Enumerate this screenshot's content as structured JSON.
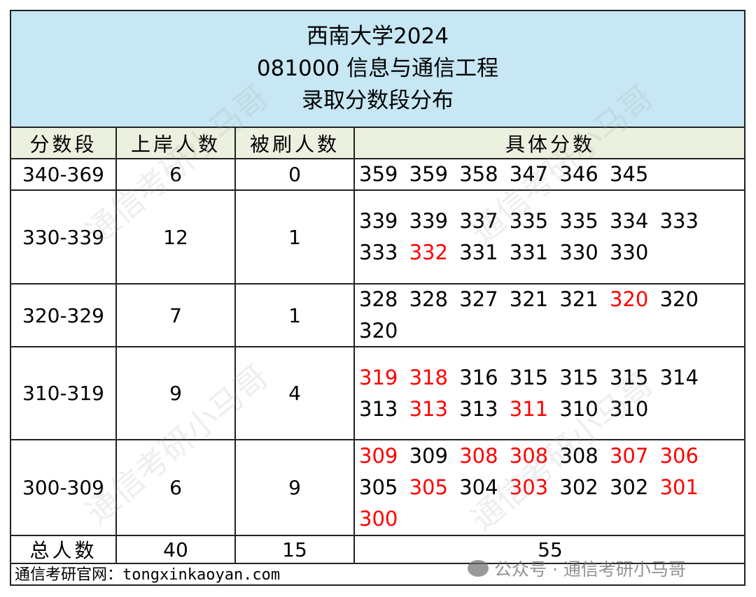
{
  "title": {
    "line1": "西南大学2024",
    "line2": "081000 信息与通信工程",
    "line3": "录取分数段分布"
  },
  "headers": [
    "分数段",
    "上岸人数",
    "被刷人数",
    "具体分数"
  ],
  "rows": [
    {
      "range": "340-369",
      "admitted": "6",
      "rejected": "0",
      "scores": [
        {
          "v": "359",
          "red": false
        },
        {
          "v": "359",
          "red": false
        },
        {
          "v": "358",
          "red": false
        },
        {
          "v": "347",
          "red": false
        },
        {
          "v": "346",
          "red": false
        },
        {
          "v": "345",
          "red": false
        }
      ]
    },
    {
      "range": "330-339",
      "admitted": "12",
      "rejected": "1",
      "scores": [
        {
          "v": "339",
          "red": false
        },
        {
          "v": "339",
          "red": false
        },
        {
          "v": "337",
          "red": false
        },
        {
          "v": "335",
          "red": false
        },
        {
          "v": "335",
          "red": false
        },
        {
          "v": "334",
          "red": false
        },
        {
          "v": "333",
          "red": false
        },
        {
          "v": "333",
          "red": false
        },
        {
          "v": "332",
          "red": true
        },
        {
          "v": "331",
          "red": false
        },
        {
          "v": "331",
          "red": false
        },
        {
          "v": "330",
          "red": false
        },
        {
          "v": "330",
          "red": false
        }
      ]
    },
    {
      "range": "320-329",
      "admitted": "7",
      "rejected": "1",
      "scores": [
        {
          "v": "328",
          "red": false
        },
        {
          "v": "328",
          "red": false
        },
        {
          "v": "327",
          "red": false
        },
        {
          "v": "321",
          "red": false
        },
        {
          "v": "321",
          "red": false
        },
        {
          "v": "320",
          "red": true
        },
        {
          "v": "320",
          "red": false
        },
        {
          "v": "320",
          "red": false
        }
      ]
    },
    {
      "range": "310-319",
      "admitted": "9",
      "rejected": "4",
      "scores": [
        {
          "v": "319",
          "red": true
        },
        {
          "v": "318",
          "red": true
        },
        {
          "v": "316",
          "red": false
        },
        {
          "v": "315",
          "red": false
        },
        {
          "v": "315",
          "red": false
        },
        {
          "v": "315",
          "red": false
        },
        {
          "v": "314",
          "red": false
        },
        {
          "v": "313",
          "red": false
        },
        {
          "v": "313",
          "red": true
        },
        {
          "v": "313",
          "red": false
        },
        {
          "v": "311",
          "red": true
        },
        {
          "v": "310",
          "red": false
        },
        {
          "v": "310",
          "red": false
        }
      ]
    },
    {
      "range": "300-309",
      "admitted": "6",
      "rejected": "9",
      "scores": [
        {
          "v": "309",
          "red": true
        },
        {
          "v": "309",
          "red": false
        },
        {
          "v": "308",
          "red": true
        },
        {
          "v": "308",
          "red": true
        },
        {
          "v": "308",
          "red": false
        },
        {
          "v": "307",
          "red": true
        },
        {
          "v": "306",
          "red": true
        },
        {
          "v": "305",
          "red": false
        },
        {
          "v": "305",
          "red": true
        },
        {
          "v": "304",
          "red": false
        },
        {
          "v": "303",
          "red": true
        },
        {
          "v": "302",
          "red": false
        },
        {
          "v": "302",
          "red": false
        },
        {
          "v": "301",
          "red": true
        },
        {
          "v": "300",
          "red": true
        }
      ]
    }
  ],
  "total": {
    "label": "总人数",
    "admitted": "40",
    "rejected": "15",
    "all": "55"
  },
  "footer": "通信考研官网：tongxinkaoyan.com",
  "watermark": "通信考研小马哥",
  "wechat_watermark": "公众号 · 通信考研小马哥",
  "colors": {
    "title_bg": "#c6e7f3",
    "header_bg": "#ebf0df",
    "rejected_score": "#ff0000"
  }
}
